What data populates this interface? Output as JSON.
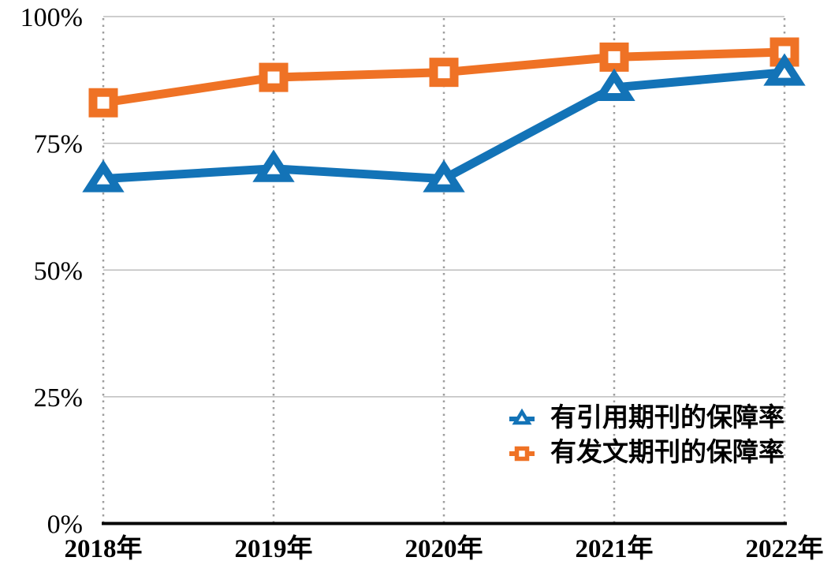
{
  "chart_data": {
    "type": "line",
    "title": "",
    "xlabel": "",
    "ylabel": "",
    "categories": [
      "2018年",
      "2019年",
      "2020年",
      "2021年",
      "2022年"
    ],
    "series": [
      {
        "key": "cited-journals",
        "name": "有引用期刊的保障率",
        "marker": "triangle",
        "color": "#1373B7",
        "values": [
          68,
          70,
          68,
          86,
          89
        ]
      },
      {
        "key": "published-journals",
        "name": "有发文期刊的保障率",
        "marker": "square",
        "color": "#EF7225",
        "values": [
          83,
          88,
          89,
          92,
          93
        ]
      }
    ],
    "ylim": [
      0,
      100
    ],
    "yticks": [
      0,
      25,
      50,
      75,
      100
    ],
    "ytick_labels": [
      "0%",
      "25%",
      "50%",
      "75%",
      "100%"
    ],
    "grid": {
      "horizontal": "solid-light-gray",
      "vertical": "dotted-gray"
    },
    "legend_position": "inside-bottom-right",
    "colors": {
      "background": "#FFFFFF",
      "gridline": "#BDBDBD",
      "grid_dotted": "#9E9E9E",
      "axis": "#000000",
      "text": "#000000"
    }
  }
}
